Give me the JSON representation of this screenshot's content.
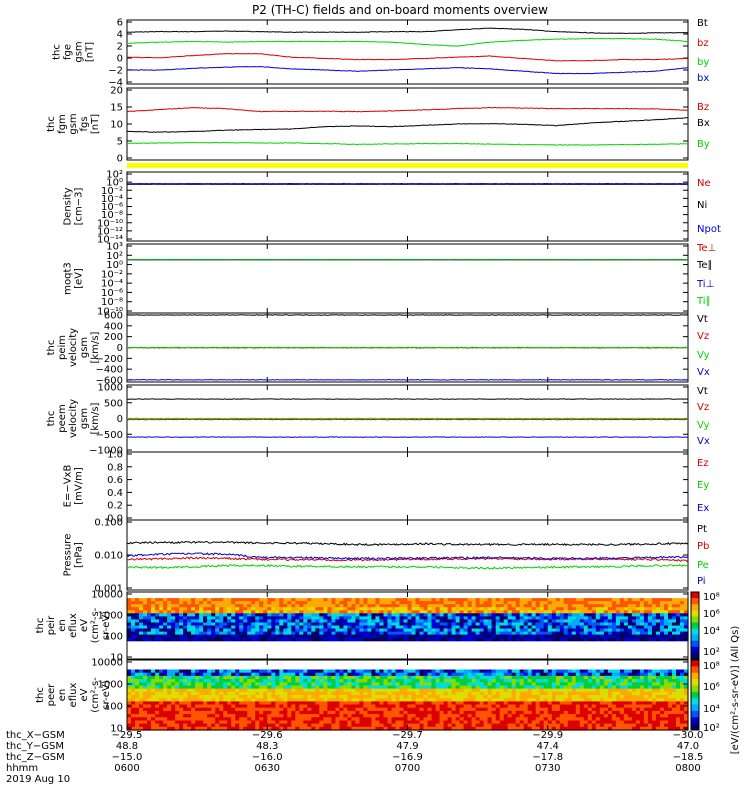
{
  "title": "P2 (TH-C) fields and on-board moments overview",
  "colors": {
    "black": "#000000",
    "red": "#d40000",
    "green": "#00d400",
    "blue": "#0000d4",
    "yellow": "#ffff00",
    "text": "#000000"
  },
  "chart_data": [
    {
      "type": "line",
      "ylabel": [
        "thc",
        "fge",
        "gsm",
        "[nT]"
      ],
      "yticks": [
        "6",
        "4",
        "2",
        "0",
        "−2",
        "−4"
      ],
      "ylim": [
        -5,
        6
      ],
      "series": [
        {
          "name": "Bt",
          "color": "black",
          "values": [
            3.9,
            4.0,
            4.0,
            4.1,
            4.0,
            3.9,
            3.9,
            3.9,
            4.0,
            4.0,
            4.3,
            4.6,
            4.4,
            4.0,
            3.8,
            3.7,
            3.8,
            3.8
          ]
        },
        {
          "name": "bz",
          "color": "red",
          "values": [
            -0.4,
            -0.5,
            -0.1,
            0.2,
            0.2,
            -0.4,
            -0.6,
            -0.8,
            -0.8,
            -0.6,
            -0.4,
            -0.2,
            -0.6,
            -1.0,
            -1.0,
            -0.8,
            -0.8,
            -0.6
          ]
        },
        {
          "name": "by",
          "color": "green",
          "values": [
            2.0,
            2.2,
            2.3,
            2.2,
            2.3,
            2.3,
            2.3,
            2.3,
            2.2,
            1.8,
            1.5,
            2.2,
            2.5,
            2.7,
            2.8,
            2.8,
            2.7,
            2.3
          ]
        },
        {
          "name": "bx",
          "color": "blue",
          "values": [
            -2.6,
            -2.6,
            -2.3,
            -2.1,
            -2.0,
            -2.4,
            -2.6,
            -2.8,
            -2.6,
            -2.4,
            -2.2,
            -2.4,
            -2.8,
            -3.2,
            -3.2,
            -3.0,
            -2.8,
            -2.2
          ]
        }
      ]
    },
    {
      "type": "line",
      "ylabel": [
        "thc",
        "fgm",
        "gsm",
        "fgs",
        "[nT]"
      ],
      "yticks": [
        "20",
        "15",
        "10",
        "5",
        "0"
      ],
      "ylim": [
        -2,
        20
      ],
      "series": [
        {
          "name": "Bz",
          "color": "red",
          "values": [
            12.8,
            13.4,
            14.0,
            13.7,
            12.8,
            12.9,
            12.9,
            12.8,
            13.0,
            13.3,
            13.7,
            14.0,
            13.9,
            13.7,
            13.7,
            13.7,
            13.6,
            13.2
          ]
        },
        {
          "name": "Bx",
          "color": "black",
          "values": [
            6.7,
            6.5,
            6.7,
            7.1,
            7.3,
            7.5,
            8.2,
            8.4,
            8.2,
            8.6,
            9.0,
            9.1,
            8.9,
            8.5,
            9.3,
            9.8,
            10.3,
            10.9
          ]
        },
        {
          "name": "By",
          "color": "green",
          "values": [
            3.1,
            3.2,
            3.3,
            3.3,
            3.2,
            3.2,
            3.0,
            2.8,
            2.9,
            3.0,
            3.0,
            2.9,
            2.7,
            2.6,
            2.6,
            2.7,
            2.8,
            3.0
          ]
        }
      ]
    },
    {
      "type": "line",
      "ylabel": [
        "Density",
        "[cm−3]"
      ],
      "yticks": [
        "10²",
        "10⁰",
        "10⁻²",
        "10⁻⁴",
        "10⁻⁶",
        "10⁻⁸",
        "10⁻¹⁰",
        "10⁻¹²",
        "10⁻¹⁴"
      ],
      "ylim": [
        -14,
        2
      ],
      "yscale": "log",
      "series": [
        {
          "name": "Ne",
          "color": "red",
          "values": [
            0.15
          ]
        },
        {
          "name": "Ni",
          "color": "black",
          "values": [
            0.15
          ]
        },
        {
          "name": "Npot",
          "color": "blue",
          "values": [
            0.2
          ]
        }
      ]
    },
    {
      "type": "line",
      "ylabel": [
        "moqt3",
        "[eV]"
      ],
      "yticks": [
        "10³",
        "10²",
        "10⁰",
        "10⁻²",
        "10⁻⁴",
        "10⁻⁶",
        "10⁻⁸",
        "10⁻¹⁰"
      ],
      "ylim": [
        -10,
        3
      ],
      "yscale": "log",
      "series": [
        {
          "name": "Te⊥",
          "color": "red",
          "values": [
            1.1
          ]
        },
        {
          "name": "Te∥",
          "color": "black",
          "values": [
            1.1
          ]
        },
        {
          "name": "Ti⊥",
          "color": "blue",
          "values": [
            1.1
          ]
        },
        {
          "name": "Ti∥",
          "color": "green",
          "values": [
            1.1
          ]
        }
      ]
    },
    {
      "type": "line",
      "ylabel": [
        "thc",
        "peim",
        "velocity",
        "gsm",
        "[km/s]"
      ],
      "yticks": [
        "600",
        "400",
        "200",
        "0",
        "−200",
        "−400",
        "−600"
      ],
      "ylim": [
        -600,
        600
      ],
      "series": [
        {
          "name": "Vt",
          "color": "black",
          "values": [
            565
          ]
        },
        {
          "name": "Vz",
          "color": "red",
          "values": [
            -5
          ]
        },
        {
          "name": "Vy",
          "color": "green",
          "values": [
            0
          ]
        },
        {
          "name": "Vx",
          "color": "blue",
          "values": [
            -562
          ]
        }
      ]
    },
    {
      "type": "line",
      "ylabel": [
        "thc",
        "peem",
        "velocity",
        "gsm",
        "[km/s]"
      ],
      "yticks": [
        "1000",
        "500",
        "0",
        "−500",
        "−1000"
      ],
      "ylim": [
        -1000,
        1000
      ],
      "series": [
        {
          "name": "Vt",
          "color": "black",
          "values": [
            580
          ]
        },
        {
          "name": "Vz",
          "color": "red",
          "values": [
            -30
          ]
        },
        {
          "name": "Vy",
          "color": "green",
          "values": [
            0
          ]
        },
        {
          "name": "Vx",
          "color": "blue",
          "values": [
            -555
          ]
        }
      ]
    },
    {
      "type": "line",
      "ylabel": [
        "E=−VxB",
        "[mV/m]"
      ],
      "yticks": [
        "1.0",
        "0.8",
        "0.6",
        "0.4",
        "0.2",
        "0.0"
      ],
      "ylim": [
        0,
        1
      ],
      "series": [
        {
          "name": "Ez",
          "color": "red",
          "values": []
        },
        {
          "name": "Ey",
          "color": "green",
          "values": []
        },
        {
          "name": "Ex",
          "color": "blue",
          "values": []
        }
      ]
    },
    {
      "type": "line",
      "ylabel": [
        "Pressure",
        "[nPa]"
      ],
      "yticks": [
        "0.100",
        "0.010",
        "0.001"
      ],
      "ylim": [
        0.001,
        0.1
      ],
      "yscale": "log",
      "series": [
        {
          "name": "Pt",
          "color": "black",
          "values": [
            0.022,
            0.023,
            0.023,
            0.023,
            0.022,
            0.022,
            0.021,
            0.02,
            0.02,
            0.021,
            0.02,
            0.02,
            0.02,
            0.02,
            0.02,
            0.02,
            0.021,
            0.021
          ]
        },
        {
          "name": "Pb",
          "color": "red",
          "values": [
            0.0075,
            0.0078,
            0.0082,
            0.008,
            0.0075,
            0.0074,
            0.0073,
            0.0072,
            0.0074,
            0.0076,
            0.0078,
            0.0078,
            0.0077,
            0.0076,
            0.0076,
            0.0076,
            0.0075,
            0.0068
          ]
        },
        {
          "name": "Pe",
          "color": "green",
          "values": [
            0.0045,
            0.0044,
            0.0046,
            0.005,
            0.005,
            0.0048,
            0.0047,
            0.0046,
            0.0046,
            0.0046,
            0.0044,
            0.0042,
            0.0044,
            0.0045,
            0.0046,
            0.0047,
            0.005,
            0.005
          ]
        },
        {
          "name": "Pi",
          "color": "blue",
          "values": [
            0.0095,
            0.0105,
            0.011,
            0.0105,
            0.0085,
            0.0085,
            0.0082,
            0.008,
            0.008,
            0.0082,
            0.0083,
            0.0085,
            0.0082,
            0.008,
            0.008,
            0.0082,
            0.0085,
            0.0088
          ]
        }
      ]
    },
    {
      "type": "heatmap",
      "ylabel": [
        "thc",
        "peir",
        "en",
        "eflux",
        "eV",
        "(cm²-s-",
        "sr-eV)"
      ],
      "yticks": [
        "10000",
        "1000",
        "100",
        "10"
      ],
      "ylim": [
        5,
        30000
      ],
      "yscale": "log"
    },
    {
      "type": "heatmap",
      "ylabel": [
        "thc",
        "peer",
        "en",
        "eflux",
        "eV",
        "(cm²-s-",
        "sr-eV)"
      ],
      "yticks": [
        "10000",
        "1000",
        "100",
        "10"
      ],
      "ylim": [
        5,
        30000
      ],
      "yscale": "log"
    }
  ],
  "colorbar": {
    "ticks": [
      "10⁸",
      "10⁶",
      "10⁴",
      "10²",
      "10⁸",
      "10⁶",
      "10⁴",
      "10²"
    ],
    "label": "[eV/(cm²-s-sr-eV)] (All Qs)"
  },
  "xaxis": {
    "row_labels": [
      "thc_X−GSM",
      "thc_Y−GSM",
      "thc_Z−GSM",
      "hhmm",
      "2019 Aug 10"
    ],
    "ticks": [
      {
        "vals": [
          "−29.5",
          "48.8",
          "−15.0",
          "0600"
        ]
      },
      {
        "vals": [
          "−29.6",
          "48.3",
          "−16.0",
          "0630"
        ]
      },
      {
        "vals": [
          "−29.7",
          "47.9",
          "−16.9",
          "0700"
        ]
      },
      {
        "vals": [
          "−29.9",
          "47.4",
          "−17.8",
          "0730"
        ]
      },
      {
        "vals": [
          "−30.0",
          "47.0",
          "−18.5",
          "0800"
        ]
      }
    ]
  }
}
